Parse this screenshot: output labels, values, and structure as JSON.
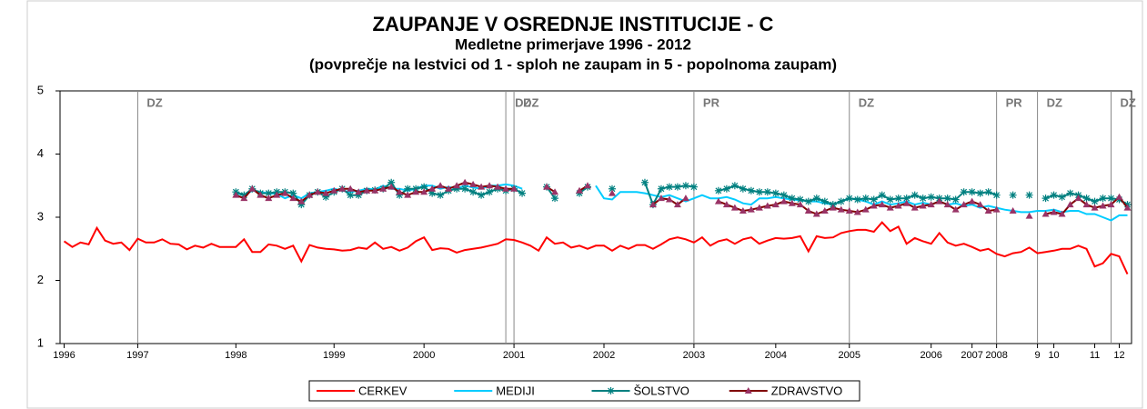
{
  "chart_data": {
    "type": "line",
    "title": "ZAUPANJE  V OSREDNJE  INSTITUCIJE  - C",
    "subtitle": "Medletne primerjave 1996 - 2012",
    "note": "(povprečje na lestvici od 1 - sploh ne zaupam in 5 - popolnoma zaupam)",
    "categories": [
      "1996",
      null,
      null,
      null,
      null,
      null,
      null,
      null,
      null,
      "1997",
      null,
      null,
      null,
      null,
      null,
      null,
      null,
      null,
      null,
      null,
      null,
      "1998",
      null,
      null,
      null,
      null,
      null,
      null,
      null,
      null,
      null,
      null,
      null,
      "1999",
      null,
      null,
      null,
      null,
      null,
      null,
      null,
      null,
      null,
      null,
      "2000",
      null,
      null,
      null,
      null,
      null,
      null,
      null,
      null,
      null,
      null,
      "2001",
      null,
      null,
      null,
      null,
      null,
      null,
      null,
      null,
      null,
      null,
      "2002",
      null,
      null,
      null,
      null,
      null,
      null,
      null,
      null,
      null,
      null,
      "2003",
      null,
      null,
      null,
      null,
      null,
      null,
      null,
      null,
      null,
      "2004",
      null,
      null,
      null,
      null,
      null,
      null,
      null,
      null,
      "2005",
      null,
      null,
      null,
      null,
      null,
      null,
      null,
      null,
      null,
      "2006",
      null,
      null,
      null,
      null,
      "2007",
      null,
      null,
      "2008",
      null,
      null,
      null,
      null,
      "9",
      null,
      "10",
      null,
      null,
      null,
      null,
      "11",
      null,
      null,
      "12",
      null
    ],
    "ylim": [
      1,
      5
    ],
    "yticks": [
      1,
      2,
      3,
      4,
      5
    ],
    "annotations": [
      {
        "text": "DZ",
        "x": 9
      },
      {
        "text": "DZ",
        "x": 54
      },
      {
        "text": "DZ",
        "x": 55
      },
      {
        "text": "PR",
        "x": 77
      },
      {
        "text": "DZ",
        "x": 96
      },
      {
        "text": "PR",
        "x": 114
      },
      {
        "text": "DZ",
        "x": 119
      },
      {
        "text": "DZ",
        "x": 128
      }
    ],
    "legend": "bottom",
    "series": [
      {
        "name": "CERKEV",
        "color": "#ff0000",
        "values": [
          2.62,
          2.53,
          2.6,
          2.57,
          2.83,
          2.63,
          2.58,
          2.6,
          2.48,
          2.66,
          2.6,
          2.6,
          2.65,
          2.58,
          2.57,
          2.49,
          2.55,
          2.52,
          2.58,
          2.53,
          2.53,
          2.53,
          2.65,
          2.45,
          2.45,
          2.57,
          2.55,
          2.5,
          2.55,
          2.3,
          2.56,
          2.52,
          2.5,
          2.49,
          2.47,
          2.48,
          2.52,
          2.5,
          2.6,
          2.5,
          2.53,
          2.47,
          2.52,
          2.62,
          2.68,
          2.48,
          2.51,
          2.5,
          2.44,
          2.48,
          2.5,
          2.52,
          2.55,
          2.58,
          2.65,
          2.64,
          2.6,
          2.55,
          2.47,
          2.68,
          2.58,
          2.6,
          2.52,
          2.55,
          2.5,
          2.55,
          2.55,
          2.47,
          2.55,
          2.5,
          2.56,
          2.56,
          2.5,
          2.57,
          2.65,
          2.68,
          2.65,
          2.6,
          2.68,
          2.55,
          2.62,
          2.65,
          2.58,
          2.65,
          2.68,
          2.58,
          2.63,
          2.67,
          2.66,
          2.67,
          2.7,
          2.46,
          2.7,
          2.67,
          2.68,
          2.75,
          2.78,
          2.8,
          2.8,
          2.77,
          2.92,
          2.78,
          2.85,
          2.58,
          2.67,
          2.62,
          2.58,
          2.75,
          2.6,
          2.55,
          2.58,
          2.53,
          2.47,
          2.5,
          2.42,
          2.38,
          2.43,
          2.45,
          2.52,
          2.43,
          2.45,
          2.47,
          2.5,
          2.5,
          2.55,
          2.5,
          2.22,
          2.27,
          2.42,
          2.38,
          2.1
        ]
      },
      {
        "name": "MEDIJI",
        "color": "#00ccff",
        "values": [
          null,
          null,
          null,
          null,
          null,
          null,
          null,
          null,
          null,
          null,
          null,
          null,
          null,
          null,
          null,
          null,
          null,
          null,
          null,
          null,
          null,
          3.38,
          3.35,
          3.42,
          3.4,
          3.38,
          3.37,
          3.3,
          3.35,
          3.3,
          3.38,
          3.4,
          3.42,
          3.45,
          3.42,
          3.4,
          3.42,
          3.45,
          3.44,
          3.5,
          3.45,
          3.45,
          3.42,
          3.45,
          3.5,
          3.5,
          3.45,
          3.48,
          3.45,
          3.5,
          3.47,
          3.45,
          3.5,
          3.5,
          3.52,
          3.5,
          3.45,
          null,
          null,
          null,
          null,
          null,
          null,
          null,
          null,
          3.5,
          3.3,
          3.28,
          3.4,
          3.4,
          3.4,
          3.38,
          3.35,
          3.32,
          3.35,
          3.3,
          3.25,
          3.3,
          3.35,
          3.3,
          3.3,
          3.32,
          3.28,
          3.22,
          3.2,
          3.3,
          3.3,
          3.32,
          3.3,
          3.28,
          3.27,
          3.25,
          3.25,
          3.22,
          3.2,
          3.25,
          3.3,
          3.28,
          3.25,
          3.2,
          3.25,
          3.2,
          3.22,
          3.25,
          3.2,
          3.23,
          3.2,
          3.25,
          3.2,
          3.22,
          3.18,
          3.2,
          3.15,
          3.18,
          3.15,
          3.12,
          3.1,
          3.08,
          3.08,
          3.1,
          3.1,
          3.12,
          3.08,
          3.1,
          3.1,
          3.05,
          3.05,
          3.0,
          2.95,
          3.03,
          3.03
        ]
      },
      {
        "name": "ŠOLSTVO",
        "color": "#008080",
        "marker": "star",
        "values": [
          null,
          null,
          null,
          null,
          null,
          null,
          null,
          null,
          null,
          null,
          null,
          null,
          null,
          null,
          null,
          null,
          null,
          null,
          null,
          null,
          null,
          3.4,
          3.35,
          3.45,
          3.38,
          3.38,
          3.4,
          3.4,
          3.38,
          3.2,
          3.35,
          3.4,
          3.32,
          3.4,
          3.45,
          3.35,
          3.35,
          3.42,
          3.43,
          3.45,
          3.55,
          3.35,
          3.45,
          3.45,
          3.48,
          3.38,
          3.35,
          3.42,
          3.45,
          3.45,
          3.4,
          3.35,
          3.4,
          3.45,
          3.42,
          3.45,
          3.38,
          null,
          null,
          3.48,
          3.3,
          null,
          null,
          3.38,
          3.48,
          null,
          null,
          3.45,
          null,
          null,
          null,
          3.55,
          3.2,
          3.45,
          3.48,
          3.48,
          3.5,
          3.48,
          null,
          null,
          3.42,
          3.45,
          3.5,
          3.45,
          3.42,
          3.4,
          3.4,
          3.38,
          3.35,
          3.3,
          3.28,
          3.25,
          3.3,
          3.25,
          3.2,
          3.25,
          3.3,
          3.28,
          3.3,
          3.28,
          3.35,
          3.28,
          3.3,
          3.3,
          3.35,
          3.3,
          3.32,
          3.3,
          3.3,
          3.28,
          3.4,
          3.4,
          3.38,
          3.4,
          3.35,
          null,
          3.35,
          null,
          3.35,
          null,
          3.3,
          3.35,
          3.32,
          3.38,
          3.35,
          3.3,
          3.25,
          3.3,
          3.3,
          3.28,
          3.2
        ]
      },
      {
        "name": "ZDRAVSTVO",
        "color": "#800000",
        "marker": "triangle",
        "marker_color": "#993366",
        "values": [
          null,
          null,
          null,
          null,
          null,
          null,
          null,
          null,
          null,
          null,
          null,
          null,
          null,
          null,
          null,
          null,
          null,
          null,
          null,
          null,
          null,
          3.35,
          3.3,
          3.45,
          3.35,
          3.3,
          3.35,
          3.38,
          3.3,
          3.25,
          3.35,
          3.4,
          3.38,
          3.42,
          3.45,
          3.45,
          3.4,
          3.42,
          3.42,
          3.45,
          3.48,
          3.4,
          3.35,
          3.4,
          3.4,
          3.45,
          3.5,
          3.45,
          3.5,
          3.55,
          3.52,
          3.48,
          3.5,
          3.48,
          3.45,
          3.45,
          null,
          null,
          null,
          3.48,
          3.4,
          null,
          null,
          3.42,
          3.5,
          null,
          null,
          3.38,
          null,
          null,
          null,
          null,
          3.2,
          3.3,
          3.28,
          3.2,
          3.3,
          null,
          null,
          null,
          3.25,
          3.2,
          3.15,
          3.1,
          3.12,
          3.15,
          3.18,
          3.2,
          3.25,
          3.22,
          3.2,
          3.1,
          3.05,
          3.1,
          3.15,
          3.12,
          3.1,
          3.08,
          3.12,
          3.18,
          3.2,
          3.15,
          3.18,
          3.22,
          3.15,
          3.18,
          3.2,
          3.25,
          3.2,
          3.12,
          3.2,
          3.25,
          3.2,
          3.1,
          3.12,
          null,
          3.1,
          null,
          3.02,
          null,
          3.05,
          3.08,
          3.05,
          3.2,
          3.3,
          3.2,
          3.15,
          3.18,
          3.2,
          3.32,
          3.15
        ]
      }
    ]
  }
}
